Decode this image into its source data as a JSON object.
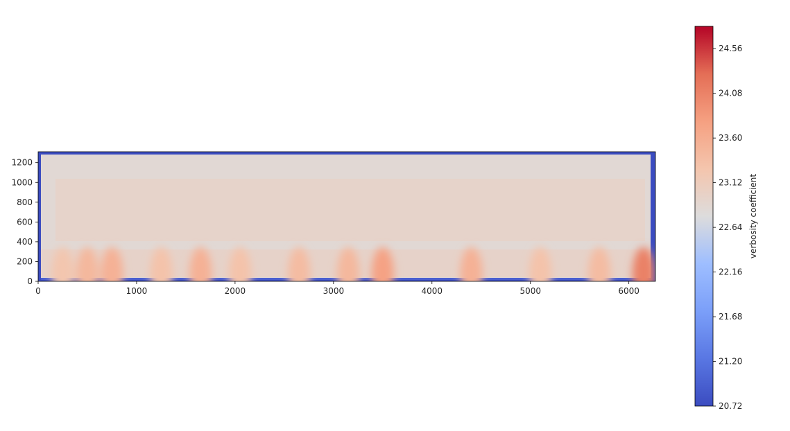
{
  "chart_data": {
    "type": "heatmap",
    "title": "",
    "xlabel": "",
    "ylabel": "",
    "xlim": [
      0,
      6270
    ],
    "ylim": [
      0,
      1310
    ],
    "x_ticks": [
      0,
      1000,
      2000,
      3000,
      4000,
      5000,
      6000
    ],
    "y_ticks": [
      0,
      200,
      400,
      600,
      800,
      1000,
      1200
    ],
    "colormap": "coolwarm",
    "colorbar": {
      "label": "verbosity coefficient",
      "min": 20.72,
      "max": 24.8,
      "ticks": [
        20.72,
        21.2,
        21.68,
        22.16,
        22.64,
        23.12,
        23.6,
        24.08,
        24.56
      ],
      "tick_labels": [
        "20.72",
        "21.20",
        "21.68",
        "22.16",
        "22.64",
        "23.12",
        "23.60",
        "24.08",
        "24.56"
      ]
    },
    "border_value": 20.72,
    "background_value": 22.85,
    "hotspots": [
      {
        "x": 250,
        "value": 23.25
      },
      {
        "x": 500,
        "value": 23.45
      },
      {
        "x": 750,
        "value": 23.55
      },
      {
        "x": 1250,
        "value": 23.3
      },
      {
        "x": 1650,
        "value": 23.55
      },
      {
        "x": 2050,
        "value": 23.3
      },
      {
        "x": 2650,
        "value": 23.4
      },
      {
        "x": 3150,
        "value": 23.45
      },
      {
        "x": 3500,
        "value": 23.75
      },
      {
        "x": 4400,
        "value": 23.55
      },
      {
        "x": 5100,
        "value": 23.3
      },
      {
        "x": 5700,
        "value": 23.4
      },
      {
        "x": 6150,
        "value": 24.1
      }
    ],
    "grid": false,
    "legend": "colorbar-right"
  }
}
